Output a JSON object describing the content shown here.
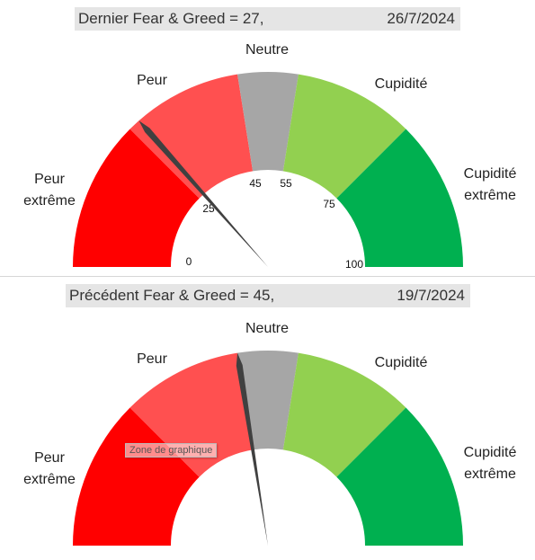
{
  "gauges": [
    {
      "header": {
        "label": "Dernier Fear & Greed = 27,",
        "date": "26/7/2024"
      },
      "value": 27,
      "show_ticks": true
    },
    {
      "header": {
        "label": "Précédent Fear & Greed = 45,",
        "date": "19/7/2024"
      },
      "value": 45,
      "show_ticks": false
    }
  ],
  "zones": [
    {
      "name": "Peur extrême",
      "label_lines": [
        "Peur",
        "extrême"
      ],
      "from": 0,
      "to": 25,
      "color": "#ff0000"
    },
    {
      "name": "Peur",
      "label_lines": [
        "Peur"
      ],
      "from": 25,
      "to": 45,
      "color": "#ff5050"
    },
    {
      "name": "Neutre",
      "label_lines": [
        "Neutre"
      ],
      "from": 45,
      "to": 55,
      "color": "#a6a6a6"
    },
    {
      "name": "Cupidité",
      "label_lines": [
        "Cupidité"
      ],
      "from": 55,
      "to": 75,
      "color": "#92d050"
    },
    {
      "name": "Cupidité extrême",
      "label_lines": [
        "Cupidité",
        "extrême"
      ],
      "from": 75,
      "to": 100,
      "color": "#00b050"
    }
  ],
  "ticks": [
    "0",
    "25",
    "45",
    "55",
    "75",
    "100"
  ],
  "needle_color": "#404040",
  "tooltip": "Zone de graphique",
  "chart_data": [
    {
      "type": "gauge",
      "title": "Dernier Fear & Greed = 27, 26/7/2024",
      "value": 27,
      "range": [
        0,
        100
      ],
      "bands": [
        {
          "label": "Peur extrême",
          "from": 0,
          "to": 25
        },
        {
          "label": "Peur",
          "from": 25,
          "to": 45
        },
        {
          "label": "Neutre",
          "from": 45,
          "to": 55
        },
        {
          "label": "Cupidité",
          "from": 55,
          "to": 75
        },
        {
          "label": "Cupidité extrême",
          "from": 75,
          "to": 100
        }
      ],
      "tick_labels": [
        0,
        25,
        45,
        55,
        75,
        100
      ]
    },
    {
      "type": "gauge",
      "title": "Précédent Fear & Greed = 45, 19/7/2024",
      "value": 45,
      "range": [
        0,
        100
      ],
      "bands": [
        {
          "label": "Peur extrême",
          "from": 0,
          "to": 25
        },
        {
          "label": "Peur",
          "from": 25,
          "to": 45
        },
        {
          "label": "Neutre",
          "from": 45,
          "to": 55
        },
        {
          "label": "Cupidité",
          "from": 55,
          "to": 75
        },
        {
          "label": "Cupidité extrême",
          "from": 75,
          "to": 100
        }
      ]
    }
  ]
}
